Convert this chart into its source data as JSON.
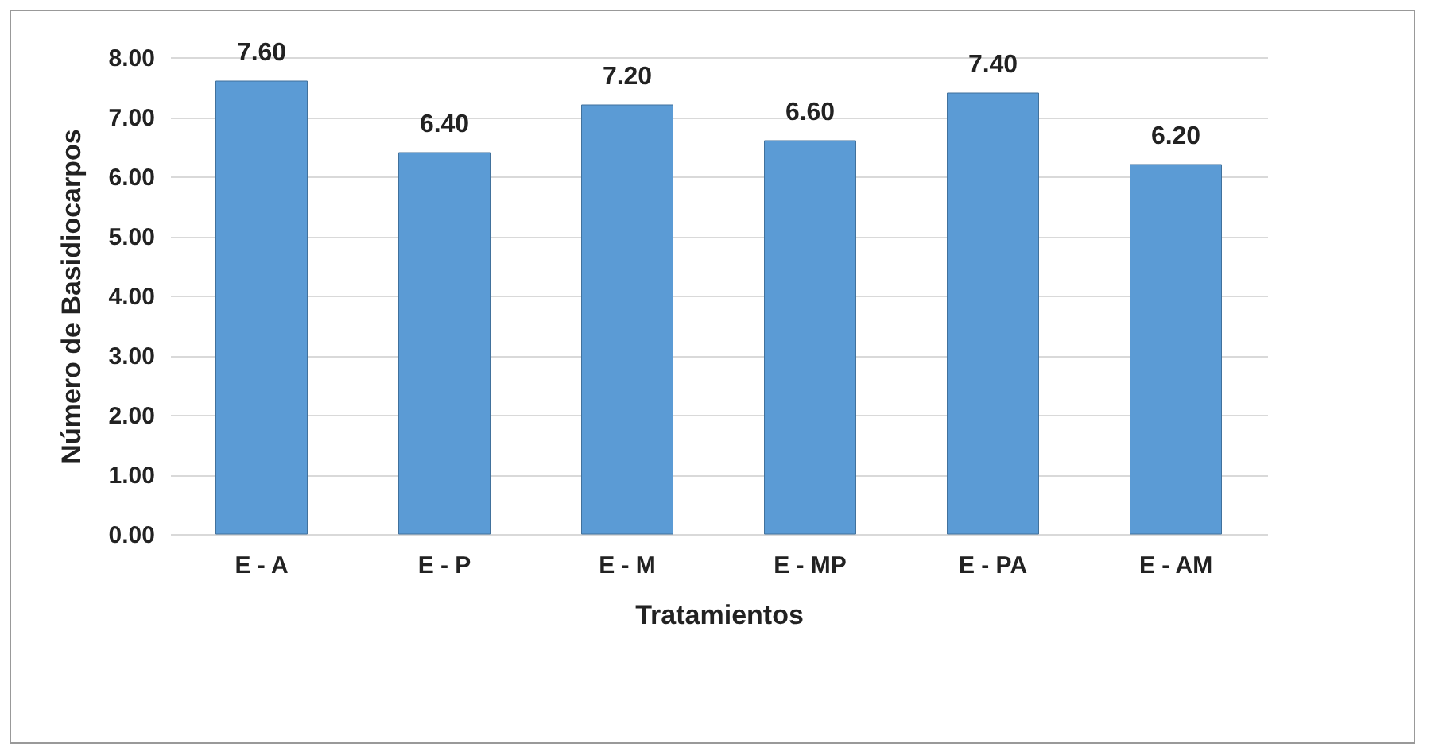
{
  "chart_data": {
    "type": "bar",
    "xlabel": "Tratamientos",
    "ylabel": "Número de Basidiocarpos",
    "categories": [
      "E - A",
      "E - P",
      "E - M",
      "E - MP",
      "E - PA",
      "E - AM"
    ],
    "values": [
      7.6,
      6.4,
      7.2,
      6.6,
      7.4,
      6.2
    ],
    "value_labels": [
      "7.60",
      "6.40",
      "7.20",
      "6.60",
      "7.40",
      "6.20"
    ],
    "color": "#5b9bd5",
    "ylim": [
      0,
      8
    ],
    "yticks": [
      {
        "value": 0,
        "label": "0.00"
      },
      {
        "value": 1,
        "label": "1.00"
      },
      {
        "value": 2,
        "label": "2.00"
      },
      {
        "value": 3,
        "label": "3.00"
      },
      {
        "value": 4,
        "label": "4.00"
      },
      {
        "value": 5,
        "label": "5.00"
      },
      {
        "value": 6,
        "label": "6.00"
      },
      {
        "value": 7,
        "label": "7.00"
      },
      {
        "value": 8,
        "label": "8.00"
      }
    ],
    "grid": "y"
  }
}
